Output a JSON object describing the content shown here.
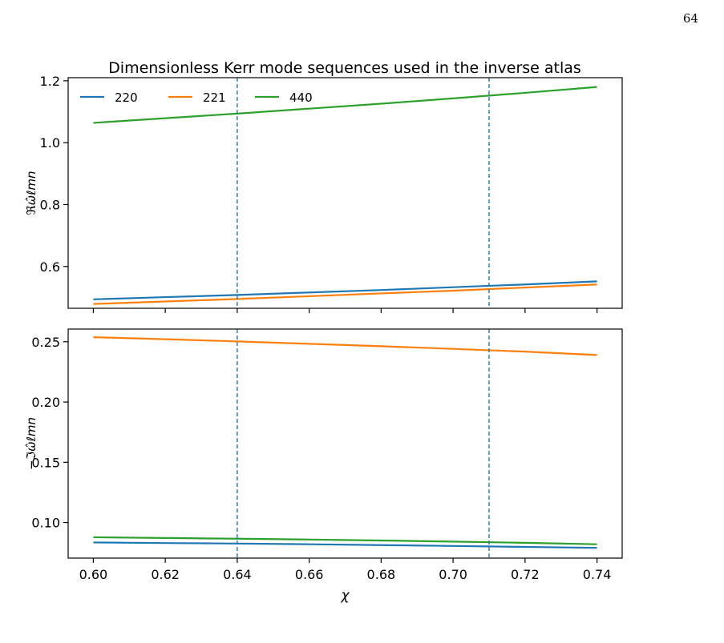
{
  "page": {
    "number": "64"
  },
  "chart_data": [
    {
      "type": "line",
      "title": "Dimensionless Kerr mode sequences used in the inverse atlas",
      "xlabel": "",
      "ylabel": "ℜω̂ℓmn",
      "xlim": [
        0.593,
        0.747
      ],
      "ylim": [
        0.465,
        1.21
      ],
      "yticks": [
        0.6,
        0.8,
        1.0,
        1.2
      ],
      "ytick_labels": [
        "0.6",
        "0.8",
        "1.0",
        "1.2"
      ],
      "xticks": [
        0.6,
        0.62,
        0.64,
        0.66,
        0.68,
        0.7,
        0.72,
        0.74
      ],
      "legend": {
        "position": "top-left",
        "columns": 3
      },
      "vlines": [
        0.64,
        0.71
      ],
      "x": [
        0.6,
        0.62,
        0.64,
        0.66,
        0.68,
        0.7,
        0.72,
        0.74
      ],
      "series": [
        {
          "name": "220",
          "color": "#1f77b4",
          "values": [
            0.494,
            0.501,
            0.508,
            0.516,
            0.524,
            0.533,
            0.542,
            0.552
          ]
        },
        {
          "name": "221",
          "color": "#ff7f0e",
          "values": [
            0.479,
            0.487,
            0.495,
            0.504,
            0.513,
            0.522,
            0.532,
            0.542
          ]
        },
        {
          "name": "440",
          "color": "#2ca02c",
          "values": [
            1.064,
            1.079,
            1.094,
            1.11,
            1.126,
            1.143,
            1.161,
            1.18
          ]
        }
      ]
    },
    {
      "type": "line",
      "xlabel": "χ",
      "ylabel": "−ℑω̂ℓmn",
      "xlim": [
        0.593,
        0.747
      ],
      "ylim": [
        0.0705,
        0.2605
      ],
      "yticks": [
        0.1,
        0.15,
        0.2,
        0.25
      ],
      "ytick_labels": [
        "0.10",
        "0.15",
        "0.20",
        "0.25"
      ],
      "xticks": [
        0.6,
        0.62,
        0.64,
        0.66,
        0.68,
        0.7,
        0.72,
        0.74
      ],
      "xtick_labels": [
        "0.60",
        "0.62",
        "0.64",
        "0.66",
        "0.68",
        "0.70",
        "0.72",
        "0.74"
      ],
      "vlines": [
        0.64,
        0.71
      ],
      "x": [
        0.6,
        0.62,
        0.64,
        0.66,
        0.68,
        0.7,
        0.72,
        0.74
      ],
      "series": [
        {
          "name": "220",
          "color": "#1f77b4",
          "values": [
            0.0835,
            0.083,
            0.0826,
            0.082,
            0.0813,
            0.0806,
            0.0798,
            0.079
          ]
        },
        {
          "name": "221",
          "color": "#ff7f0e",
          "values": [
            0.2538,
            0.2521,
            0.2503,
            0.2483,
            0.2463,
            0.2441,
            0.2418,
            0.239
          ]
        },
        {
          "name": "440",
          "color": "#2ca02c",
          "values": [
            0.0878,
            0.0872,
            0.0866,
            0.0859,
            0.0851,
            0.0842,
            0.0832,
            0.082
          ]
        }
      ]
    }
  ]
}
